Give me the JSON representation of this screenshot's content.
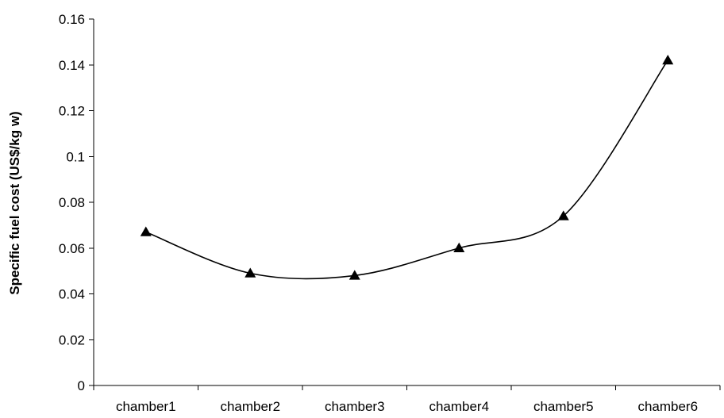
{
  "chart_data": {
    "type": "line",
    "title": "",
    "xlabel": "",
    "ylabel": "Specific fuel cost (US$/kg w)",
    "categories": [
      "chamber1",
      "chamber2",
      "chamber3",
      "chamber4",
      "chamber5",
      "chamber6"
    ],
    "series": [
      {
        "values": [
          0.067,
          0.049,
          0.048,
          0.06,
          0.074,
          0.142
        ],
        "color": "#000000",
        "marker": "triangle",
        "smooth": true
      }
    ],
    "ylim": [
      0,
      0.16
    ],
    "yticks": [
      0,
      0.02,
      0.04,
      0.06,
      0.08,
      0.1,
      0.12,
      0.14,
      0.16
    ],
    "ytick_labels": [
      "0",
      "0.02",
      "0.04",
      "0.06",
      "0.08",
      "0.1",
      "0.12",
      "0.14",
      "0.16"
    ],
    "grid": false,
    "legend": "none"
  }
}
